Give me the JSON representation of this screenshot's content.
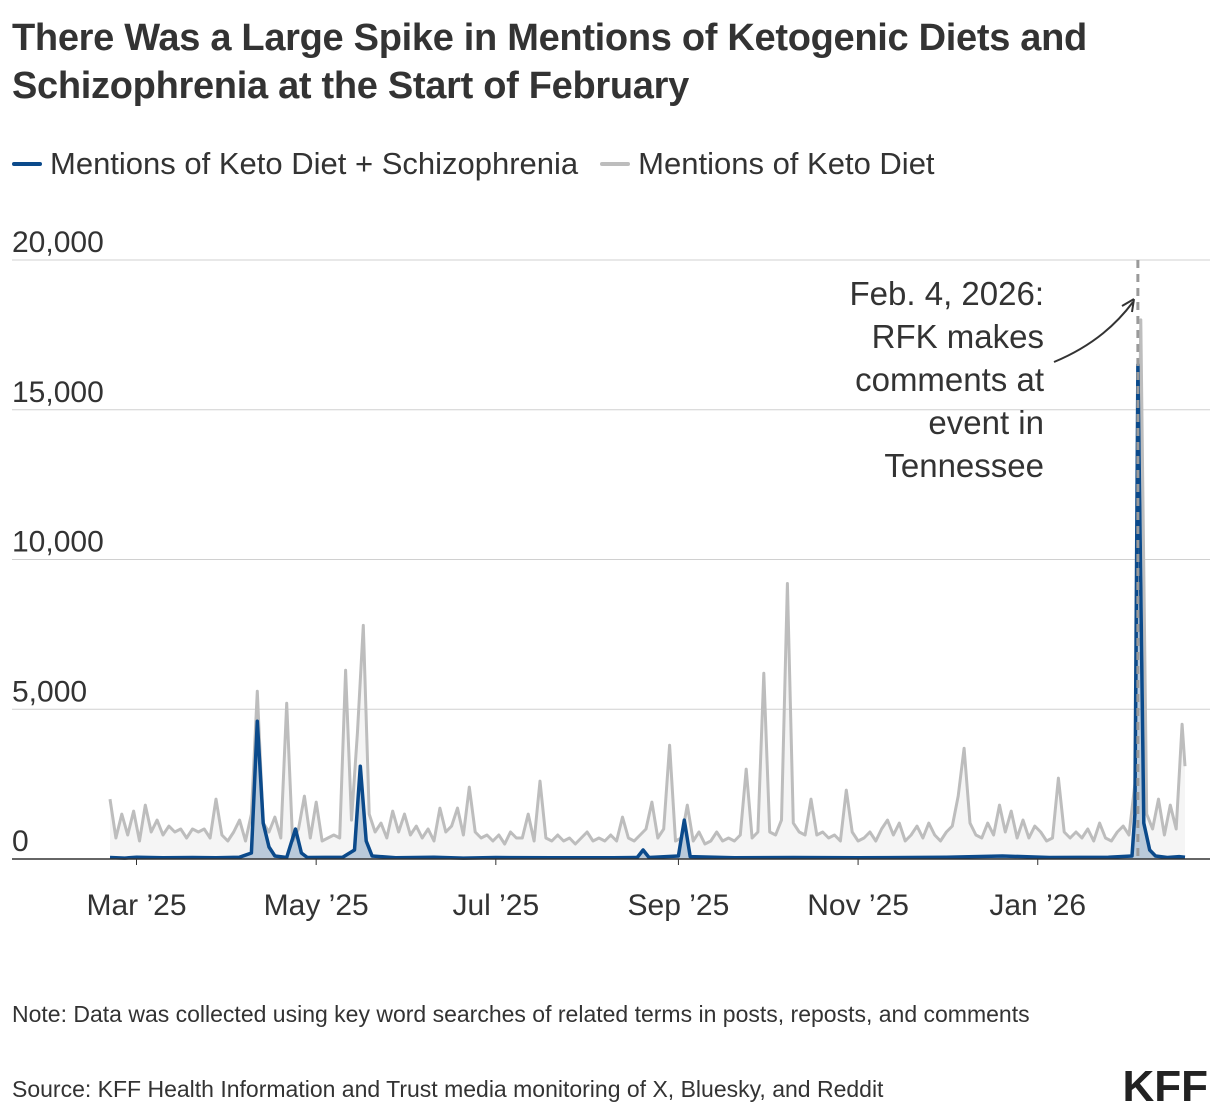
{
  "title": "There Was a Large Spike in Mentions of Ketogenic Diets and Schizophrenia at the Start of February",
  "legend": [
    {
      "label": "Mentions of Keto Diet + Schizophrenia",
      "color": "#0b4a8b"
    },
    {
      "label": "Mentions of Keto Diet",
      "color": "#bdbdbd"
    }
  ],
  "note": "Note: Data was collected using key word searches of related terms in posts, reposts, and comments",
  "source": "Source: KFF Health Information and Trust media monitoring of X, Bluesky, and Reddit",
  "logo_text": "KFF",
  "chart_data": {
    "type": "area",
    "x_start": "2025-02-15",
    "x_end": "2026-02-24",
    "ylim": [
      0,
      20000
    ],
    "y_ticks": [
      {
        "value": 0,
        "label": "0"
      },
      {
        "value": 5000,
        "label": "5,000"
      },
      {
        "value": 10000,
        "label": "10,000"
      },
      {
        "value": 15000,
        "label": "15,000"
      },
      {
        "value": 20000,
        "label": "20,000"
      }
    ],
    "x_ticks": [
      {
        "date": "2025-03-01",
        "label": "Mar ’25"
      },
      {
        "date": "2025-05-01",
        "label": "May ’25"
      },
      {
        "date": "2025-07-01",
        "label": "Jul ’25"
      },
      {
        "date": "2025-09-01",
        "label": "Sep ’25"
      },
      {
        "date": "2025-11-01",
        "label": "Nov ’25"
      },
      {
        "date": "2026-01-01",
        "label": "Jan ’26"
      }
    ],
    "grid": true,
    "legend_position": "top-left",
    "annotation": {
      "date": "2026-02-04",
      "lines": [
        "Feb. 4, 2026:",
        "RFK makes",
        "comments at",
        "event in",
        "Tennessee"
      ]
    },
    "series": [
      {
        "name": "Mentions of Keto Diet",
        "color": "#bdbdbd",
        "points": [
          [
            "2025-02-20",
            2000
          ],
          [
            "2025-02-22",
            700
          ],
          [
            "2025-02-24",
            1500
          ],
          [
            "2025-02-26",
            800
          ],
          [
            "2025-02-28",
            1600
          ],
          [
            "2025-03-02",
            600
          ],
          [
            "2025-03-04",
            1800
          ],
          [
            "2025-03-06",
            900
          ],
          [
            "2025-03-08",
            1300
          ],
          [
            "2025-03-10",
            800
          ],
          [
            "2025-03-12",
            1100
          ],
          [
            "2025-03-14",
            900
          ],
          [
            "2025-03-16",
            1000
          ],
          [
            "2025-03-18",
            700
          ],
          [
            "2025-03-20",
            1000
          ],
          [
            "2025-03-22",
            900
          ],
          [
            "2025-03-24",
            1000
          ],
          [
            "2025-03-26",
            700
          ],
          [
            "2025-03-28",
            2000
          ],
          [
            "2025-03-30",
            800
          ],
          [
            "2025-04-01",
            600
          ],
          [
            "2025-04-03",
            900
          ],
          [
            "2025-04-05",
            1300
          ],
          [
            "2025-04-07",
            600
          ],
          [
            "2025-04-09",
            1500
          ],
          [
            "2025-04-11",
            5600
          ],
          [
            "2025-04-13",
            1200
          ],
          [
            "2025-04-15",
            900
          ],
          [
            "2025-04-17",
            1400
          ],
          [
            "2025-04-19",
            700
          ],
          [
            "2025-04-21",
            5200
          ],
          [
            "2025-04-23",
            600
          ],
          [
            "2025-04-25",
            1000
          ],
          [
            "2025-04-27",
            2100
          ],
          [
            "2025-04-29",
            700
          ],
          [
            "2025-05-01",
            1900
          ],
          [
            "2025-05-03",
            600
          ],
          [
            "2025-05-05",
            700
          ],
          [
            "2025-05-07",
            800
          ],
          [
            "2025-05-09",
            700
          ],
          [
            "2025-05-11",
            6300
          ],
          [
            "2025-05-13",
            1300
          ],
          [
            "2025-05-15",
            4200
          ],
          [
            "2025-05-17",
            7800
          ],
          [
            "2025-05-19",
            1500
          ],
          [
            "2025-05-21",
            900
          ],
          [
            "2025-05-23",
            1200
          ],
          [
            "2025-05-25",
            700
          ],
          [
            "2025-05-27",
            1600
          ],
          [
            "2025-05-29",
            900
          ],
          [
            "2025-05-31",
            1500
          ],
          [
            "2025-06-02",
            800
          ],
          [
            "2025-06-04",
            1100
          ],
          [
            "2025-06-06",
            700
          ],
          [
            "2025-06-08",
            1000
          ],
          [
            "2025-06-10",
            600
          ],
          [
            "2025-06-12",
            1700
          ],
          [
            "2025-06-14",
            900
          ],
          [
            "2025-06-16",
            1100
          ],
          [
            "2025-06-18",
            1700
          ],
          [
            "2025-06-20",
            800
          ],
          [
            "2025-06-22",
            2400
          ],
          [
            "2025-06-24",
            900
          ],
          [
            "2025-06-26",
            700
          ],
          [
            "2025-06-28",
            800
          ],
          [
            "2025-06-30",
            600
          ],
          [
            "2025-07-02",
            800
          ],
          [
            "2025-07-04",
            500
          ],
          [
            "2025-07-06",
            900
          ],
          [
            "2025-07-08",
            700
          ],
          [
            "2025-07-10",
            700
          ],
          [
            "2025-07-12",
            1500
          ],
          [
            "2025-07-14",
            600
          ],
          [
            "2025-07-16",
            2600
          ],
          [
            "2025-07-18",
            700
          ],
          [
            "2025-07-20",
            600
          ],
          [
            "2025-07-22",
            800
          ],
          [
            "2025-07-24",
            600
          ],
          [
            "2025-07-26",
            700
          ],
          [
            "2025-07-28",
            500
          ],
          [
            "2025-07-30",
            700
          ],
          [
            "2025-08-01",
            900
          ],
          [
            "2025-08-03",
            600
          ],
          [
            "2025-08-05",
            700
          ],
          [
            "2025-08-07",
            600
          ],
          [
            "2025-08-09",
            800
          ],
          [
            "2025-08-11",
            600
          ],
          [
            "2025-08-13",
            1400
          ],
          [
            "2025-08-15",
            700
          ],
          [
            "2025-08-17",
            600
          ],
          [
            "2025-08-19",
            800
          ],
          [
            "2025-08-21",
            1000
          ],
          [
            "2025-08-23",
            1900
          ],
          [
            "2025-08-25",
            700
          ],
          [
            "2025-08-27",
            1000
          ],
          [
            "2025-08-29",
            3800
          ],
          [
            "2025-08-31",
            600
          ],
          [
            "2025-09-02",
            700
          ],
          [
            "2025-09-04",
            1800
          ],
          [
            "2025-09-06",
            600
          ],
          [
            "2025-09-08",
            900
          ],
          [
            "2025-09-10",
            500
          ],
          [
            "2025-09-12",
            600
          ],
          [
            "2025-09-14",
            900
          ],
          [
            "2025-09-16",
            600
          ],
          [
            "2025-09-18",
            700
          ],
          [
            "2025-09-20",
            600
          ],
          [
            "2025-09-22",
            800
          ],
          [
            "2025-09-24",
            3000
          ],
          [
            "2025-09-26",
            700
          ],
          [
            "2025-09-28",
            900
          ],
          [
            "2025-09-30",
            6200
          ],
          [
            "2025-10-02",
            900
          ],
          [
            "2025-10-04",
            800
          ],
          [
            "2025-10-06",
            1300
          ],
          [
            "2025-10-08",
            9200
          ],
          [
            "2025-10-10",
            1200
          ],
          [
            "2025-10-12",
            900
          ],
          [
            "2025-10-14",
            800
          ],
          [
            "2025-10-16",
            2000
          ],
          [
            "2025-10-18",
            800
          ],
          [
            "2025-10-20",
            900
          ],
          [
            "2025-10-22",
            700
          ],
          [
            "2025-10-24",
            800
          ],
          [
            "2025-10-26",
            600
          ],
          [
            "2025-10-28",
            2300
          ],
          [
            "2025-10-30",
            900
          ],
          [
            "2025-11-01",
            600
          ],
          [
            "2025-11-03",
            700
          ],
          [
            "2025-11-05",
            900
          ],
          [
            "2025-11-07",
            600
          ],
          [
            "2025-11-09",
            1000
          ],
          [
            "2025-11-11",
            1300
          ],
          [
            "2025-11-13",
            800
          ],
          [
            "2025-11-15",
            1200
          ],
          [
            "2025-11-17",
            600
          ],
          [
            "2025-11-19",
            800
          ],
          [
            "2025-11-21",
            1100
          ],
          [
            "2025-11-23",
            700
          ],
          [
            "2025-11-25",
            1200
          ],
          [
            "2025-11-27",
            800
          ],
          [
            "2025-11-29",
            600
          ],
          [
            "2025-12-01",
            900
          ],
          [
            "2025-12-03",
            1100
          ],
          [
            "2025-12-05",
            2100
          ],
          [
            "2025-12-07",
            3700
          ],
          [
            "2025-12-09",
            1200
          ],
          [
            "2025-12-11",
            800
          ],
          [
            "2025-12-13",
            700
          ],
          [
            "2025-12-15",
            1200
          ],
          [
            "2025-12-17",
            800
          ],
          [
            "2025-12-19",
            1800
          ],
          [
            "2025-12-21",
            900
          ],
          [
            "2025-12-23",
            1600
          ],
          [
            "2025-12-25",
            700
          ],
          [
            "2025-12-27",
            1300
          ],
          [
            "2025-12-29",
            700
          ],
          [
            "2025-12-31",
            1100
          ],
          [
            "2026-01-02",
            900
          ],
          [
            "2026-01-04",
            600
          ],
          [
            "2026-01-06",
            700
          ],
          [
            "2026-01-08",
            2700
          ],
          [
            "2026-01-10",
            900
          ],
          [
            "2026-01-12",
            700
          ],
          [
            "2026-01-14",
            900
          ],
          [
            "2026-01-16",
            700
          ],
          [
            "2026-01-18",
            1000
          ],
          [
            "2026-01-20",
            600
          ],
          [
            "2026-01-22",
            1200
          ],
          [
            "2026-01-24",
            700
          ],
          [
            "2026-01-26",
            600
          ],
          [
            "2026-01-28",
            900
          ],
          [
            "2026-01-30",
            1100
          ],
          [
            "2026-02-01",
            800
          ],
          [
            "2026-02-03",
            2500
          ],
          [
            "2026-02-05",
            18000
          ],
          [
            "2026-02-07",
            1500
          ],
          [
            "2026-02-09",
            1000
          ],
          [
            "2026-02-11",
            2000
          ],
          [
            "2026-02-13",
            800
          ],
          [
            "2026-02-15",
            1800
          ],
          [
            "2026-02-17",
            1000
          ],
          [
            "2026-02-19",
            4500
          ],
          [
            "2026-02-20",
            3100
          ]
        ]
      },
      {
        "name": "Mentions of Keto Diet + Schizophrenia",
        "color": "#0b4a8b",
        "points": [
          [
            "2025-02-20",
            50
          ],
          [
            "2025-02-25",
            30
          ],
          [
            "2025-03-01",
            60
          ],
          [
            "2025-03-10",
            40
          ],
          [
            "2025-03-20",
            50
          ],
          [
            "2025-03-28",
            40
          ],
          [
            "2025-04-05",
            60
          ],
          [
            "2025-04-09",
            200
          ],
          [
            "2025-04-11",
            4600
          ],
          [
            "2025-04-13",
            1200
          ],
          [
            "2025-04-15",
            400
          ],
          [
            "2025-04-17",
            100
          ],
          [
            "2025-04-21",
            50
          ],
          [
            "2025-04-24",
            1000
          ],
          [
            "2025-04-26",
            200
          ],
          [
            "2025-04-28",
            50
          ],
          [
            "2025-05-10",
            60
          ],
          [
            "2025-05-14",
            300
          ],
          [
            "2025-05-16",
            3100
          ],
          [
            "2025-05-18",
            600
          ],
          [
            "2025-05-20",
            100
          ],
          [
            "2025-05-28",
            40
          ],
          [
            "2025-06-10",
            60
          ],
          [
            "2025-06-20",
            30
          ],
          [
            "2025-07-01",
            50
          ],
          [
            "2025-07-20",
            40
          ],
          [
            "2025-08-10",
            40
          ],
          [
            "2025-08-18",
            50
          ],
          [
            "2025-08-20",
            300
          ],
          [
            "2025-08-22",
            50
          ],
          [
            "2025-09-01",
            100
          ],
          [
            "2025-09-03",
            1300
          ],
          [
            "2025-09-05",
            80
          ],
          [
            "2025-09-20",
            40
          ],
          [
            "2025-10-10",
            50
          ],
          [
            "2025-11-01",
            40
          ],
          [
            "2025-12-01",
            60
          ],
          [
            "2025-12-20",
            100
          ],
          [
            "2026-01-05",
            50
          ],
          [
            "2026-01-25",
            60
          ],
          [
            "2026-02-02",
            100
          ],
          [
            "2026-02-03",
            1500
          ],
          [
            "2026-02-04",
            16500
          ],
          [
            "2026-02-06",
            1200
          ],
          [
            "2026-02-08",
            300
          ],
          [
            "2026-02-10",
            100
          ],
          [
            "2026-02-14",
            50
          ],
          [
            "2026-02-18",
            80
          ],
          [
            "2026-02-20",
            60
          ]
        ]
      }
    ]
  }
}
